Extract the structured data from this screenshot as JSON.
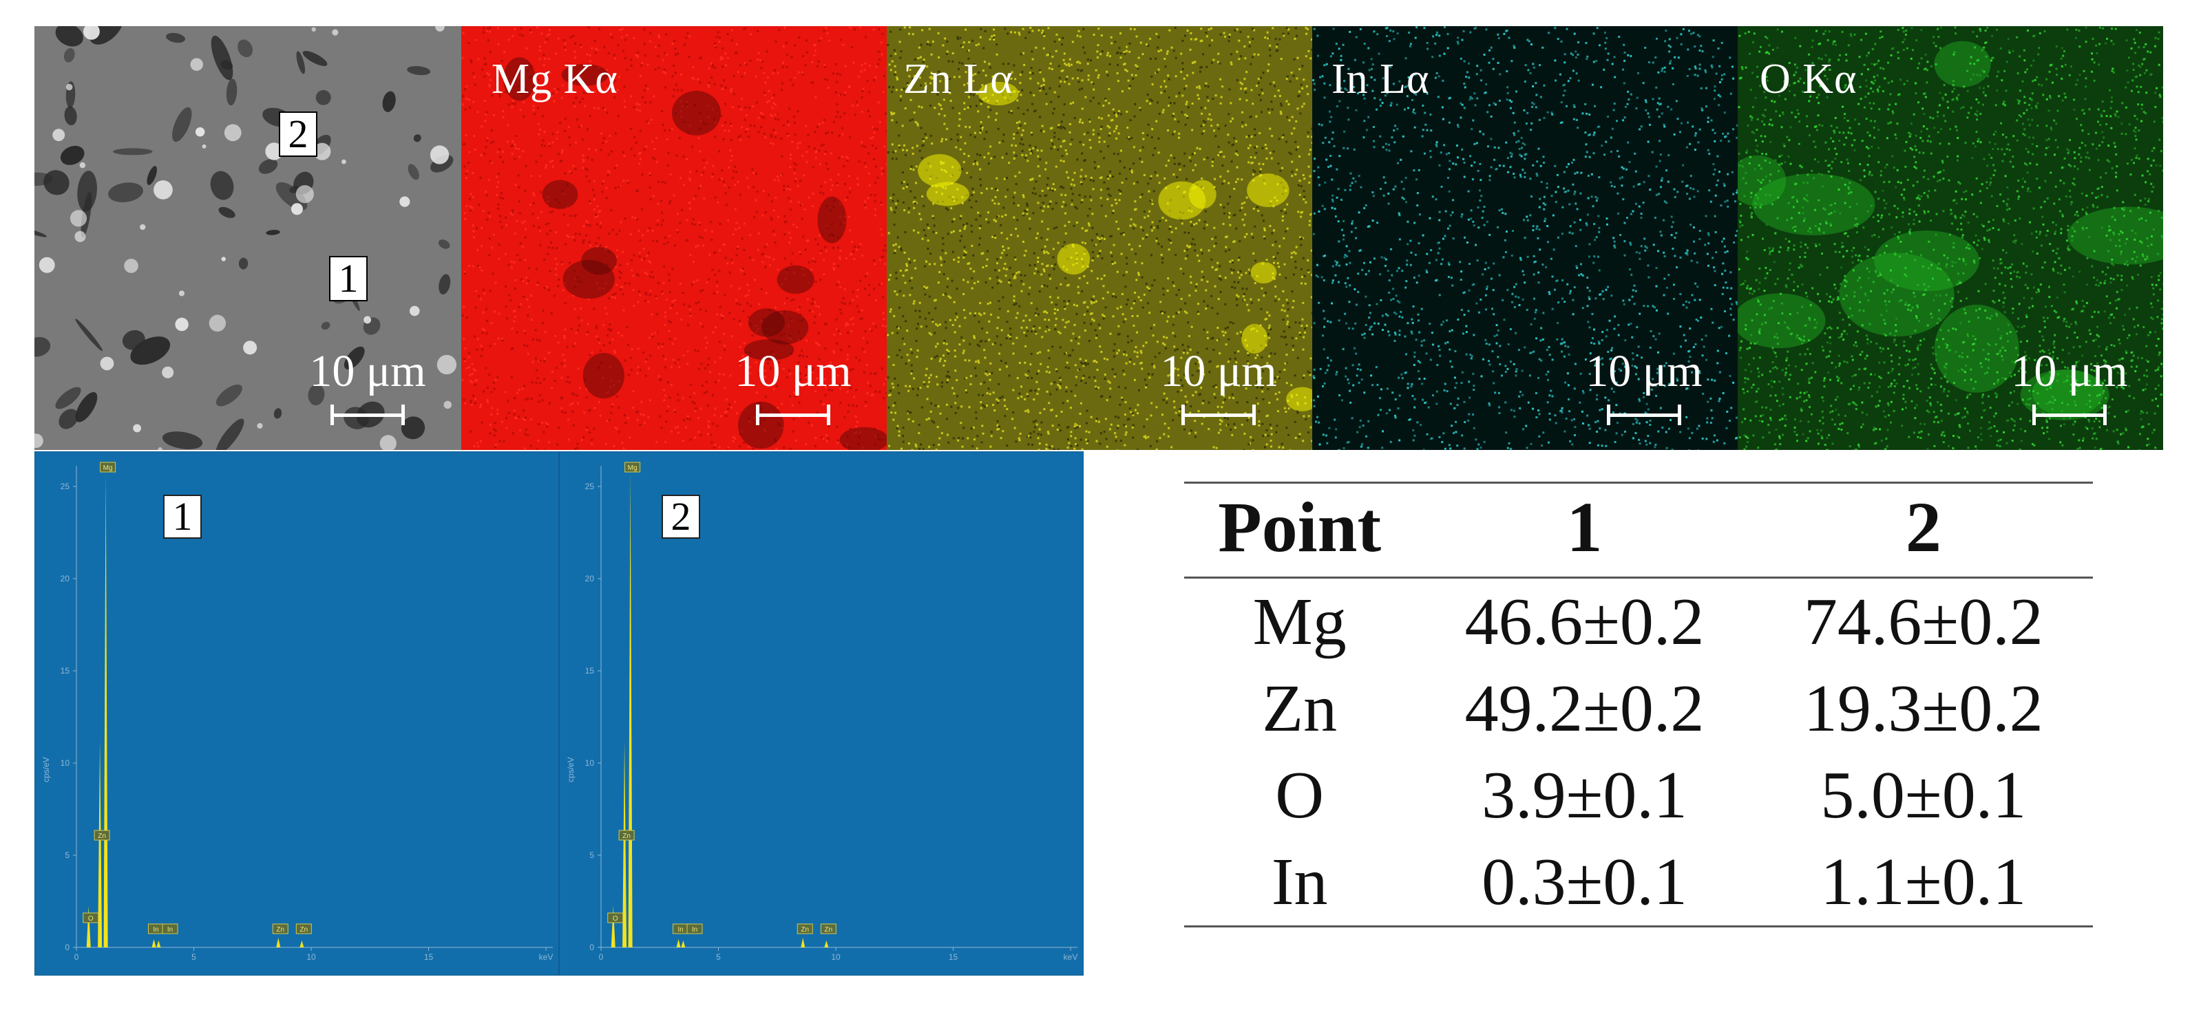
{
  "maps": [
    {
      "key": "sem",
      "label": "",
      "scale": "10 μm",
      "bg": "#777777"
    },
    {
      "key": "mg",
      "label": "Mg Kα",
      "scale": "10 μm",
      "bg": "#e8140d"
    },
    {
      "key": "zn",
      "label": "Zn Lα",
      "scale": "10 μm",
      "bg": "#6b6a10"
    },
    {
      "key": "in",
      "label": "In Lα",
      "scale": "10 μm",
      "bg": "#021412"
    },
    {
      "key": "o",
      "label": "O Kα",
      "scale": "10 μm",
      "bg": "#0c3d0d"
    }
  ],
  "sem_points": {
    "p1": "1",
    "p2": "2"
  },
  "spectra": [
    {
      "point": "1",
      "peaks": [
        {
          "el": "Mg"
        },
        {
          "el": "Zn"
        },
        {
          "el": "O"
        },
        {
          "el": "In"
        },
        {
          "el": "In"
        },
        {
          "el": "Zn"
        },
        {
          "el": "Zn"
        }
      ],
      "yticks": [
        "25",
        "20",
        "15",
        "10",
        "5",
        "0"
      ],
      "xticks": [
        "0",
        "5",
        "10",
        "15",
        "keV"
      ],
      "ylabel": "cps/eV"
    },
    {
      "point": "2",
      "peaks": [
        {
          "el": "Mg"
        },
        {
          "el": "Zn"
        },
        {
          "el": "O"
        },
        {
          "el": "In"
        },
        {
          "el": "In"
        },
        {
          "el": "Zn"
        },
        {
          "el": "Zn"
        }
      ],
      "yticks": [
        "25",
        "20",
        "15",
        "10",
        "5",
        "0"
      ],
      "xticks": [
        "0",
        "5",
        "10",
        "15",
        "keV"
      ],
      "ylabel": "cps/eV"
    }
  ],
  "table": {
    "headers": [
      "Point",
      "1",
      "2"
    ],
    "rows": [
      [
        "Mg",
        "46.6±0.2",
        "74.6±0.2"
      ],
      [
        "Zn",
        "49.2±0.2",
        "19.3±0.2"
      ],
      [
        "O",
        "3.9±0.1",
        "5.0±0.1"
      ],
      [
        "In",
        "0.3±0.1",
        "1.1±0.1"
      ]
    ]
  },
  "colors": {
    "spectrum_bg": "#126eab",
    "peak": "#f5e21a",
    "cyan_dots": "#2cc9c9",
    "green_dots": "#2fd42f"
  }
}
